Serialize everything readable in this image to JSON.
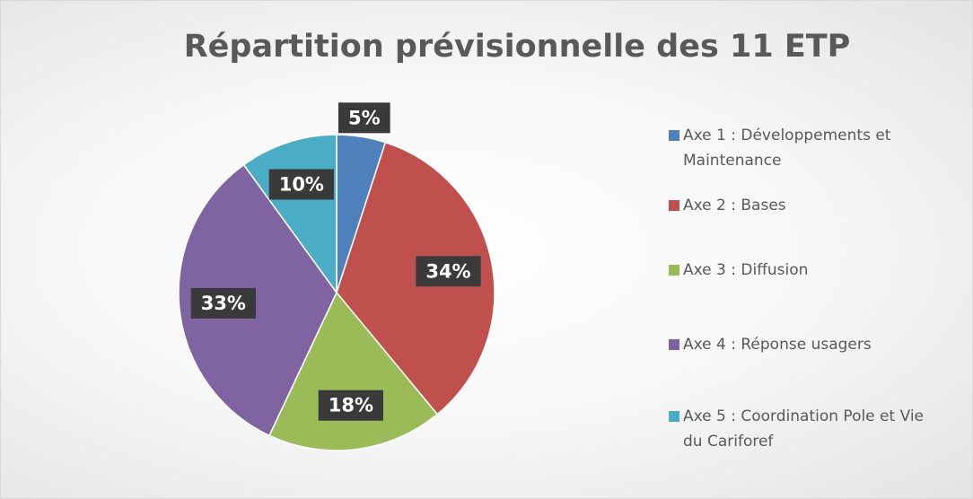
{
  "chart_data": {
    "type": "pie",
    "title": "Répartition prévisionnelle des 11 ETP",
    "categories": [
      "Axe 1 : Développements et Maintenance",
      "Axe 2 : Bases",
      "Axe 3 : Diffusion",
      "Axe 4 : Réponse usagers",
      "Axe 5 : Coordination Pole et Vie du Cariforef"
    ],
    "values": [
      5,
      34,
      18,
      33,
      10
    ],
    "value_labels": [
      "5%",
      "34%",
      "18%",
      "33%",
      "10%"
    ],
    "colors": [
      "#4f81bd",
      "#c0504d",
      "#9bbb59",
      "#8064a2",
      "#4bacc6"
    ],
    "legend": "right"
  }
}
